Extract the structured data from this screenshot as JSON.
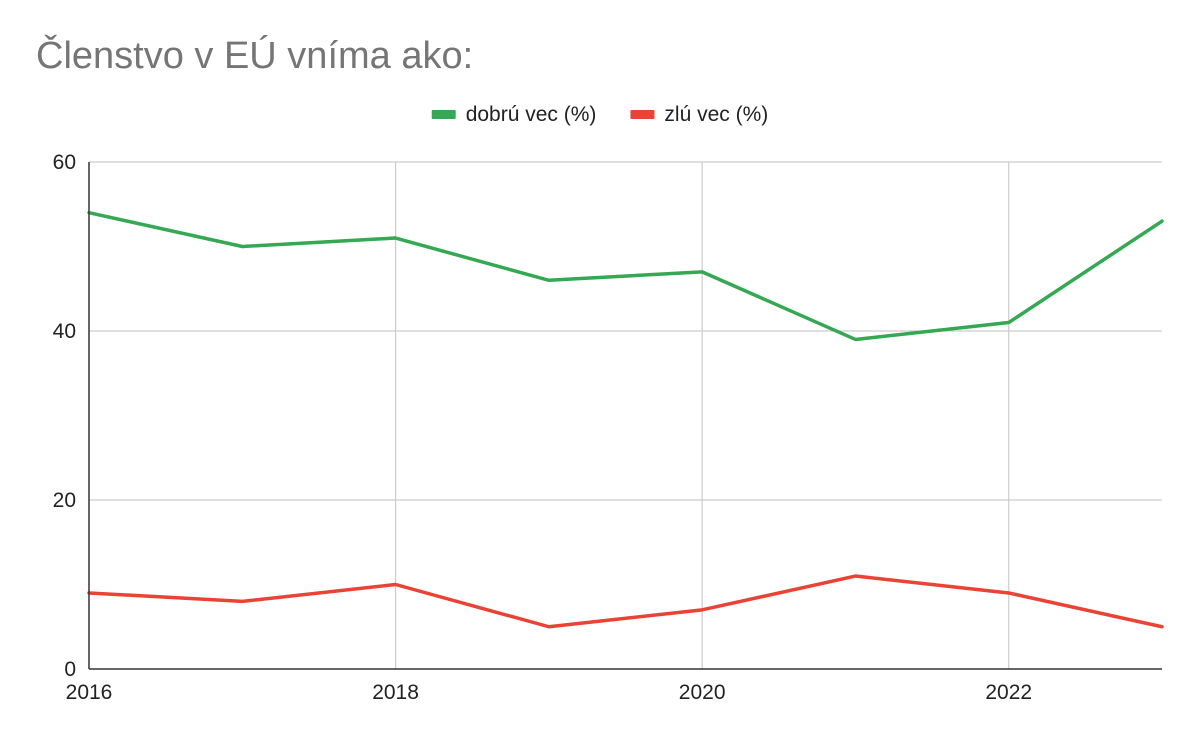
{
  "chart_data": {
    "type": "line",
    "title": "Členstvo v EÚ vníma ako:",
    "xlabel": "",
    "ylabel": "",
    "x": [
      2016,
      2017,
      2018,
      2019,
      2020,
      2021,
      2022,
      2023
    ],
    "x_ticks": [
      "2016",
      "2018",
      "2020",
      "2022"
    ],
    "y_ticks": [
      "0",
      "20",
      "40",
      "60"
    ],
    "xlim": [
      2016,
      2023
    ],
    "ylim": [
      0,
      60
    ],
    "grid": true,
    "legend_position": "top-center",
    "series": [
      {
        "name": "dobrú vec (%)",
        "color": "#34a853",
        "values": [
          54,
          50,
          51,
          46,
          47,
          39,
          41,
          53
        ]
      },
      {
        "name": "zlú vec (%)",
        "color": "#ea4335",
        "values": [
          9,
          8,
          10,
          5,
          7,
          11,
          9,
          5
        ]
      }
    ]
  }
}
